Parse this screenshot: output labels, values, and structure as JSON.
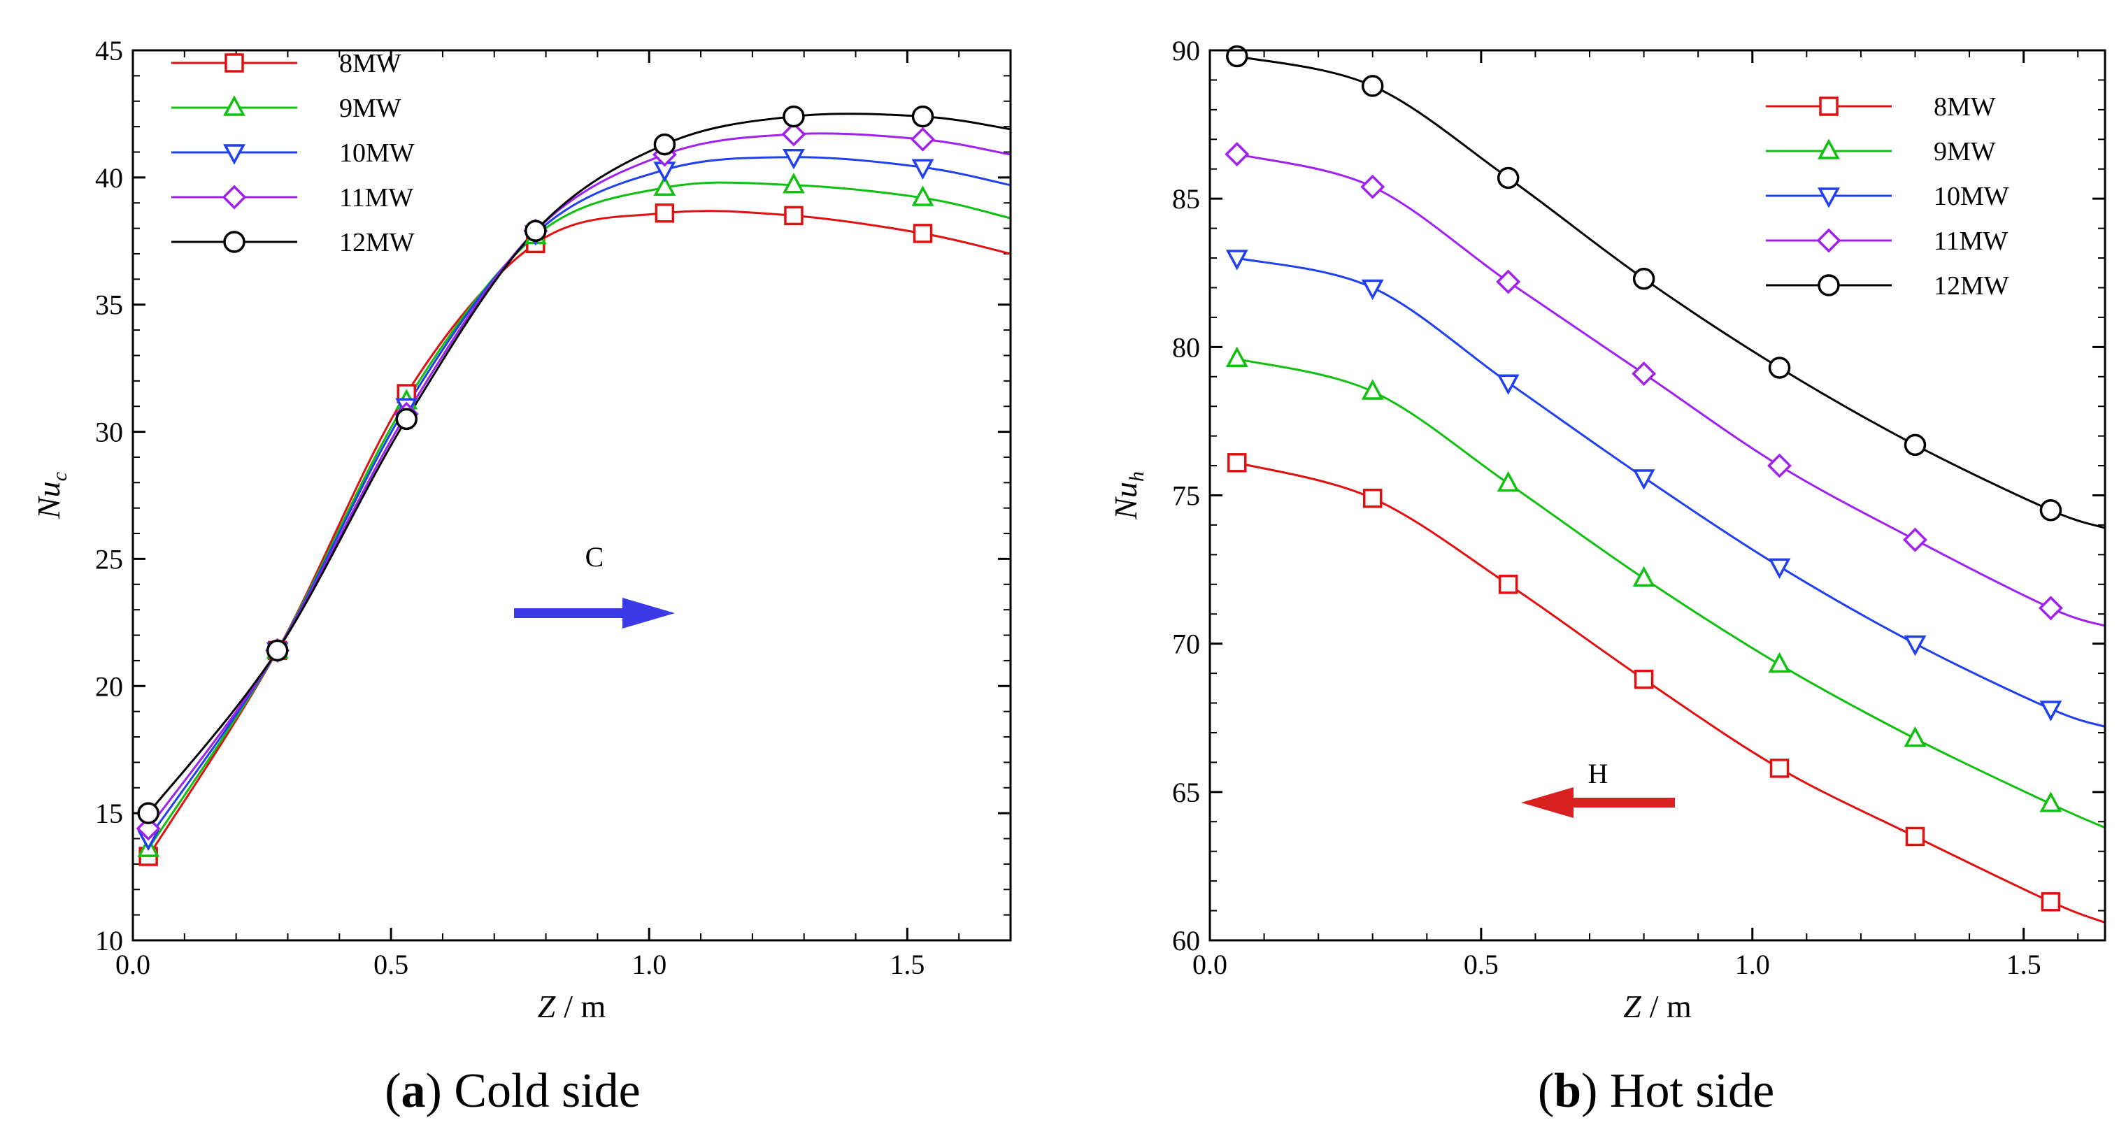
{
  "figure": {
    "colors": {
      "8MW": "#e01010",
      "9MW": "#10c010",
      "10MW": "#2040f0",
      "11MW": "#a020f0",
      "12MW": "#000000"
    }
  },
  "chart_data": [
    {
      "type": "line",
      "panel_letter": "a",
      "panel_caption": "Cold side",
      "xlabel_var": "Z",
      "xlabel_unit": "/ m",
      "ylabel_base": "Nu",
      "ylabel_sub": "c",
      "xlim": [
        0,
        1.7
      ],
      "ylim": [
        10,
        45
      ],
      "xticks": [
        0.0,
        0.5,
        1.0,
        1.5
      ],
      "xtick_labels": [
        "0.0",
        "0.5",
        "1.0",
        "1.5"
      ],
      "yticks": [
        10,
        15,
        20,
        25,
        30,
        35,
        40,
        45
      ],
      "ytick_labels": [
        "10",
        "15",
        "20",
        "25",
        "30",
        "35",
        "40",
        "45"
      ],
      "grid": false,
      "legend_position": "top-left",
      "x": [
        0.03,
        0.28,
        0.53,
        0.78,
        1.03,
        1.28,
        1.53,
        1.7
      ],
      "series": [
        {
          "name": "8MW",
          "marker": "square",
          "values": [
            13.3,
            21.4,
            31.5,
            37.4,
            38.6,
            38.5,
            37.8,
            37.0
          ]
        },
        {
          "name": "9MW",
          "marker": "triangle",
          "values": [
            13.6,
            21.4,
            31.2,
            37.7,
            39.6,
            39.7,
            39.2,
            38.4
          ]
        },
        {
          "name": "10MW",
          "marker": "tri-down",
          "values": [
            14.0,
            21.4,
            31.0,
            37.8,
            40.3,
            40.8,
            40.4,
            39.7
          ]
        },
        {
          "name": "11MW",
          "marker": "diamond",
          "values": [
            14.4,
            21.4,
            30.7,
            37.9,
            40.9,
            41.7,
            41.5,
            40.9
          ]
        },
        {
          "name": "12MW",
          "marker": "circle",
          "values": [
            15.0,
            21.4,
            30.5,
            37.9,
            41.3,
            42.4,
            42.4,
            41.9
          ]
        }
      ],
      "annotation": {
        "label": "C",
        "direction": "right",
        "color": "#3a3ae8"
      }
    },
    {
      "type": "line",
      "panel_letter": "b",
      "panel_caption": "Hot side",
      "xlabel_var": "Z",
      "xlabel_unit": "/ m",
      "ylabel_base": "Nu",
      "ylabel_sub": "h",
      "xlim": [
        0,
        1.65
      ],
      "ylim": [
        60,
        90
      ],
      "xticks": [
        0.0,
        0.5,
        1.0,
        1.5
      ],
      "xtick_labels": [
        "0.0",
        "0.5",
        "1.0",
        "1.5"
      ],
      "yticks": [
        60,
        65,
        70,
        75,
        80,
        85,
        90
      ],
      "ytick_labels": [
        "60",
        "65",
        "70",
        "75",
        "80",
        "85",
        "90"
      ],
      "grid": false,
      "legend_position": "top-right",
      "x": [
        0.05,
        0.3,
        0.55,
        0.8,
        1.05,
        1.3,
        1.55,
        1.65
      ],
      "series": [
        {
          "name": "8MW",
          "marker": "square",
          "values": [
            76.1,
            74.9,
            72.0,
            68.8,
            65.8,
            63.5,
            61.3,
            60.6
          ]
        },
        {
          "name": "9MW",
          "marker": "triangle",
          "values": [
            79.6,
            78.5,
            75.4,
            72.2,
            69.3,
            66.8,
            64.6,
            63.8
          ]
        },
        {
          "name": "10MW",
          "marker": "tri-down",
          "values": [
            83.0,
            82.0,
            78.8,
            75.6,
            72.6,
            70.0,
            67.8,
            67.2
          ]
        },
        {
          "name": "11MW",
          "marker": "diamond",
          "values": [
            86.5,
            85.4,
            82.2,
            79.1,
            76.0,
            73.5,
            71.2,
            70.6
          ]
        },
        {
          "name": "12MW",
          "marker": "circle",
          "values": [
            89.8,
            88.8,
            85.7,
            82.3,
            79.3,
            76.7,
            74.5,
            73.9
          ]
        }
      ],
      "annotation": {
        "label": "H",
        "direction": "left",
        "color": "#d82020"
      }
    }
  ]
}
